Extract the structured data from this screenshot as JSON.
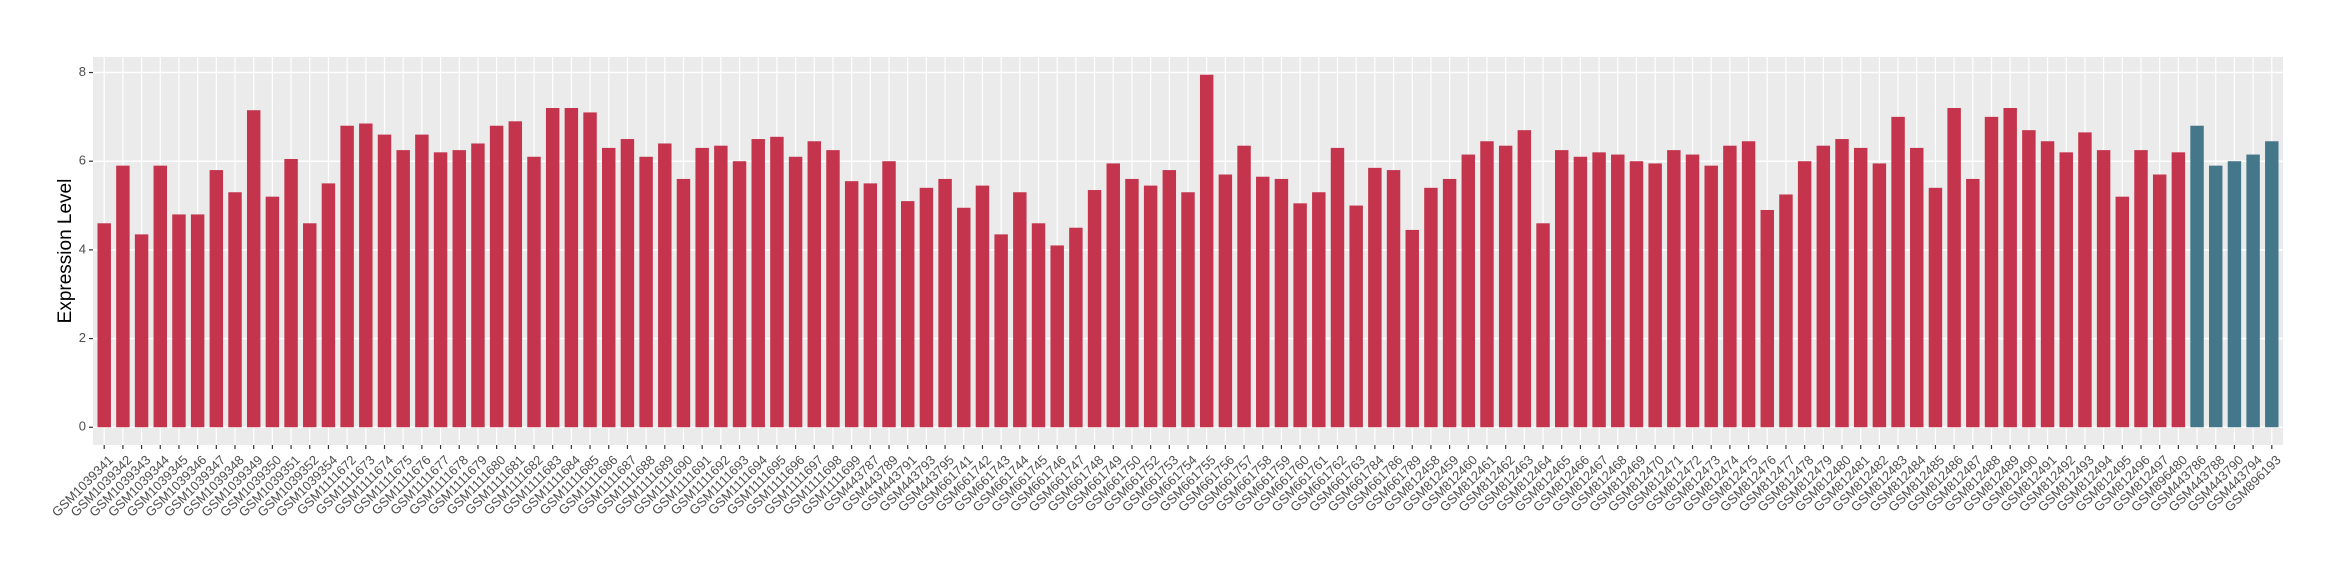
{
  "chart_data": {
    "type": "bar",
    "y_label": "Expression Level",
    "categories": [
      "GSM1039341",
      "GSM1039342",
      "GSM1039343",
      "GSM1039344",
      "GSM1039345",
      "GSM1039346",
      "GSM1039347",
      "GSM1039348",
      "GSM1039349",
      "GSM1039350",
      "GSM1039351",
      "GSM1039352",
      "GSM1039354",
      "GSM1111672",
      "GSM1111673",
      "GSM1111674",
      "GSM1111675",
      "GSM1111676",
      "GSM1111677",
      "GSM1111678",
      "GSM1111679",
      "GSM1111680",
      "GSM1111681",
      "GSM1111682",
      "GSM1111683",
      "GSM1111684",
      "GSM1111685",
      "GSM1111686",
      "GSM1111687",
      "GSM1111688",
      "GSM1111689",
      "GSM1111690",
      "GSM1111691",
      "GSM1111692",
      "GSM1111693",
      "GSM1111694",
      "GSM1111695",
      "GSM1111696",
      "GSM1111697",
      "GSM1111698",
      "GSM1111699",
      "GSM443787",
      "GSM443789",
      "GSM443791",
      "GSM443793",
      "GSM443795",
      "GSM661741",
      "GSM661742",
      "GSM661743",
      "GSM661744",
      "GSM661745",
      "GSM661746",
      "GSM661747",
      "GSM661748",
      "GSM661749",
      "GSM661750",
      "GSM661752",
      "GSM661753",
      "GSM661754",
      "GSM661755",
      "GSM661756",
      "GSM661757",
      "GSM661758",
      "GSM661759",
      "GSM661760",
      "GSM661761",
      "GSM661762",
      "GSM661763",
      "GSM661784",
      "GSM661786",
      "GSM661789",
      "GSM812458",
      "GSM812459",
      "GSM812460",
      "GSM812461",
      "GSM812462",
      "GSM812463",
      "GSM812464",
      "GSM812465",
      "GSM812466",
      "GSM812467",
      "GSM812468",
      "GSM812469",
      "GSM812470",
      "GSM812471",
      "GSM812472",
      "GSM812473",
      "GSM812474",
      "GSM812475",
      "GSM812476",
      "GSM812477",
      "GSM812478",
      "GSM812479",
      "GSM812480",
      "GSM812481",
      "GSM812482",
      "GSM812483",
      "GSM812484",
      "GSM812485",
      "GSM812486",
      "GSM812487",
      "GSM812488",
      "GSM812489",
      "GSM812490",
      "GSM812491",
      "GSM812492",
      "GSM812493",
      "GSM812494",
      "GSM812495",
      "GSM812496",
      "GSM812497",
      "GSM896480",
      "GSM443786",
      "GSM443788",
      "GSM443790",
      "GSM443794",
      "GSM896193"
    ],
    "values": [
      4.6,
      5.9,
      4.35,
      5.9,
      4.8,
      4.8,
      5.8,
      5.3,
      7.15,
      5.2,
      6.05,
      4.6,
      5.5,
      6.8,
      6.85,
      6.6,
      6.25,
      6.6,
      6.2,
      6.25,
      6.4,
      6.8,
      6.9,
      6.1,
      7.2,
      7.2,
      7.1,
      6.3,
      6.5,
      6.1,
      6.4,
      5.6,
      6.3,
      6.35,
      6.0,
      6.5,
      6.55,
      6.1,
      6.45,
      6.25,
      5.55,
      5.5,
      6.0,
      5.1,
      5.4,
      5.6,
      4.95,
      5.45,
      4.35,
      5.3,
      4.6,
      4.1,
      4.5,
      5.35,
      5.95,
      5.6,
      5.45,
      5.8,
      5.3,
      7.95,
      5.7,
      6.35,
      5.65,
      5.6,
      5.05,
      5.3,
      6.3,
      5.0,
      5.85,
      5.8,
      4.45,
      5.4,
      5.6,
      6.15,
      6.45,
      6.35,
      6.7,
      4.6,
      6.25,
      6.1,
      6.2,
      6.15,
      6.0,
      5.95,
      6.25,
      6.15,
      5.9,
      6.35,
      6.45,
      4.9,
      5.25,
      6.0,
      6.35,
      6.5,
      6.3,
      5.95,
      7.0,
      6.3,
      5.4,
      7.2,
      5.6,
      7.0,
      7.2,
      6.7,
      6.45,
      6.2,
      6.65,
      6.25,
      5.2,
      6.25,
      5.7,
      6.2,
      6.8,
      5.9,
      6.0,
      6.15,
      6.45
    ],
    "colors": [
      "#c4354d",
      "#c4354d",
      "#c4354d",
      "#c4354d",
      "#c4354d",
      "#c4354d",
      "#c4354d",
      "#c4354d",
      "#c4354d",
      "#c4354d",
      "#c4354d",
      "#c4354d",
      "#c4354d",
      "#c4354d",
      "#c4354d",
      "#c4354d",
      "#c4354d",
      "#c4354d",
      "#c4354d",
      "#c4354d",
      "#c4354d",
      "#c4354d",
      "#c4354d",
      "#c4354d",
      "#c4354d",
      "#c4354d",
      "#c4354d",
      "#c4354d",
      "#c4354d",
      "#c4354d",
      "#c4354d",
      "#c4354d",
      "#c4354d",
      "#c4354d",
      "#c4354d",
      "#c4354d",
      "#c4354d",
      "#c4354d",
      "#c4354d",
      "#c4354d",
      "#c4354d",
      "#c4354d",
      "#c4354d",
      "#c4354d",
      "#c4354d",
      "#c4354d",
      "#c4354d",
      "#c4354d",
      "#c4354d",
      "#c4354d",
      "#c4354d",
      "#c4354d",
      "#c4354d",
      "#c4354d",
      "#c4354d",
      "#c4354d",
      "#c4354d",
      "#c4354d",
      "#c4354d",
      "#c4354d",
      "#c4354d",
      "#c4354d",
      "#c4354d",
      "#c4354d",
      "#c4354d",
      "#c4354d",
      "#c4354d",
      "#c4354d",
      "#c4354d",
      "#c4354d",
      "#c4354d",
      "#c4354d",
      "#c4354d",
      "#c4354d",
      "#c4354d",
      "#c4354d",
      "#c4354d",
      "#c4354d",
      "#c4354d",
      "#c4354d",
      "#c4354d",
      "#c4354d",
      "#c4354d",
      "#c4354d",
      "#c4354d",
      "#c4354d",
      "#c4354d",
      "#c4354d",
      "#c4354d",
      "#c4354d",
      "#c4354d",
      "#c4354d",
      "#c4354d",
      "#c4354d",
      "#c4354d",
      "#c4354d",
      "#c4354d",
      "#c4354d",
      "#c4354d",
      "#c4354d",
      "#c4354d",
      "#c4354d",
      "#c4354d",
      "#c4354d",
      "#c4354d",
      "#c4354d",
      "#c4354d",
      "#c4354d",
      "#c4354d",
      "#c4354d",
      "#c4354d",
      "#c4354d",
      "#44778a",
      "#44778a",
      "#44778a",
      "#44778a",
      "#44778a"
    ],
    "ylim": [
      -0.4,
      8.35
    ],
    "yticks": [
      0,
      2,
      4,
      6,
      8
    ],
    "grid": true
  }
}
